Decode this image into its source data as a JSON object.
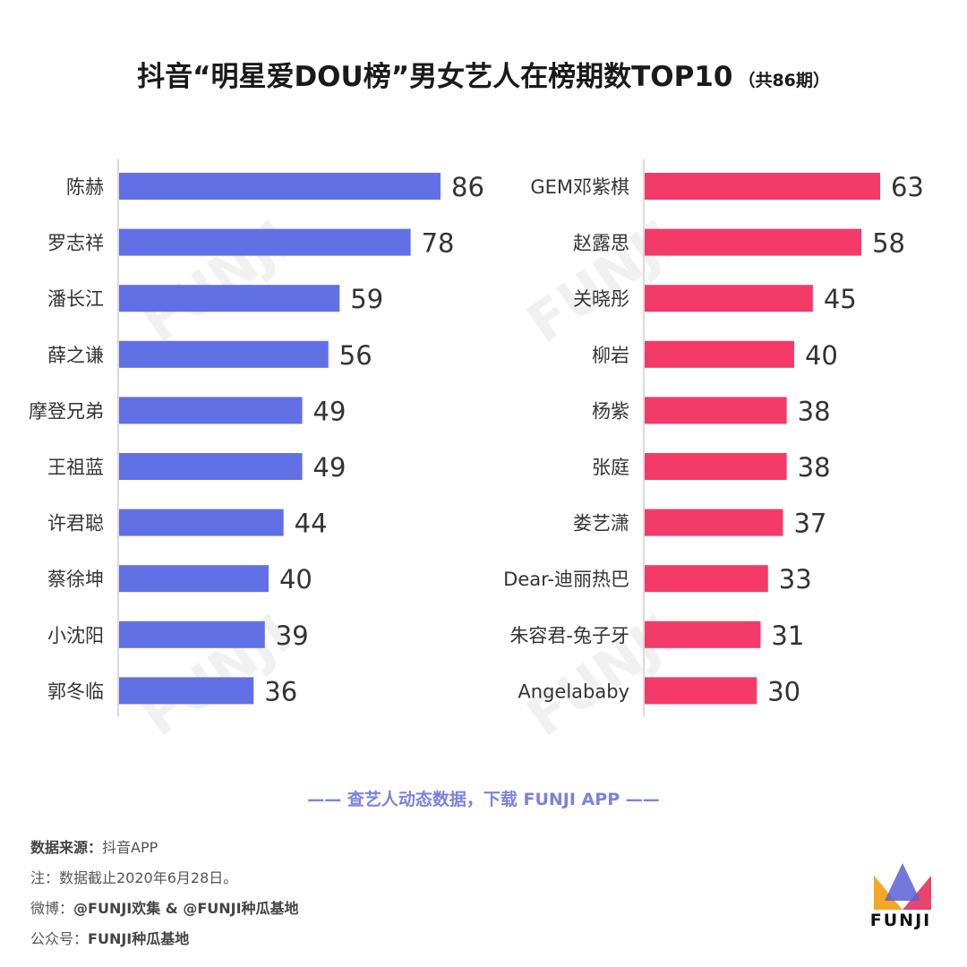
{
  "title": {
    "main": "抖音“明星爱DOU榜”男女艺人在榜期数TOP10",
    "sub": "（共86期）"
  },
  "chart_data": [
    {
      "type": "bar",
      "orientation": "horizontal",
      "color": "#6270e5",
      "categories": [
        "陈赫",
        "罗志祥",
        "潘长江",
        "薛之谦",
        "摩登兄弟",
        "王祖蓝",
        "许君聪",
        "蔡徐坤",
        "小沈阳",
        "郭冬临"
      ],
      "values": [
        86,
        78,
        59,
        56,
        49,
        49,
        44,
        40,
        39,
        36
      ]
    },
    {
      "type": "bar",
      "orientation": "horizontal",
      "color": "#f43a68",
      "categories": [
        "GEM邓紫棋",
        "赵露思",
        "关晓彤",
        "柳岩",
        "杨紫",
        "张庭",
        "娄艺潇",
        "Dear-迪丽热巴",
        "朱容君-兔子牙",
        "Angelababy"
      ],
      "values": [
        63,
        58,
        45,
        40,
        38,
        38,
        37,
        33,
        31,
        30
      ]
    }
  ],
  "tagline": "—— 查艺人动态数据，下载 FUNJI APP ——",
  "footer": {
    "source_label": "数据来源：",
    "source_value": "抖音APP",
    "note": "注：数据截止2020年6月28日。",
    "weibo_label": "微博：",
    "weibo_value": "@FUNJI欢集 & @FUNJI种瓜基地",
    "wechat_label": "公众号：",
    "wechat_value": "FUNJI种瓜基地"
  },
  "logo": {
    "text": "FUNJI",
    "colors": [
      "#f5a623",
      "#e8446e",
      "#5b5fd6"
    ]
  },
  "watermark": "FUNJI"
}
